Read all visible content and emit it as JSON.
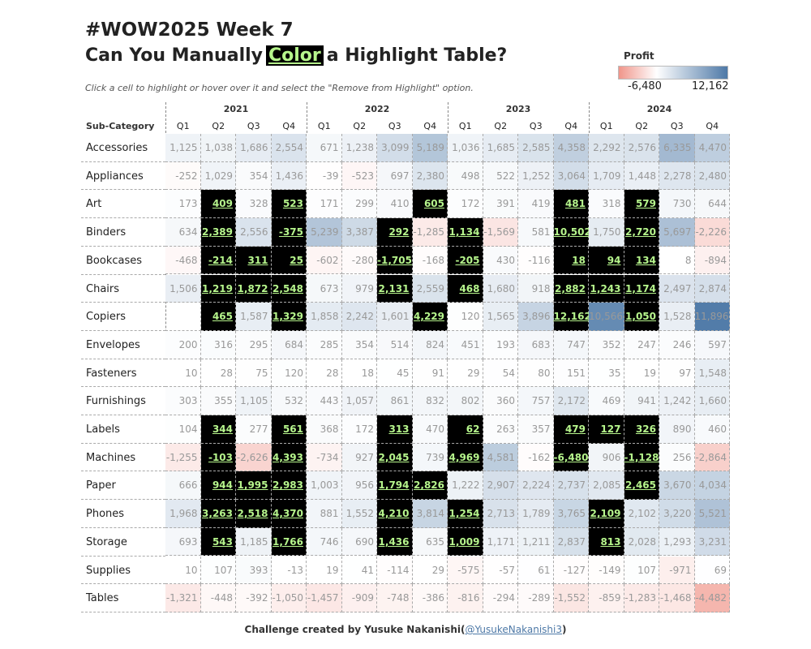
{
  "header": {
    "title_line1": "#WOW2025 Week 7",
    "title_line2": [
      "Can You Manually",
      "Color",
      "a Highlight Table?"
    ],
    "subtitle": "Click a cell to highlight or hover over it and select the \"Remove from Highlight\" option."
  },
  "legend": {
    "title": "Profit",
    "min": {
      "value": -6480,
      "label": "-6,480"
    },
    "max": {
      "value": 12162,
      "label": "12,162"
    },
    "negative_color": "#f0958a",
    "positive_color": "#4e79a7"
  },
  "table": {
    "row_header": "Sub-Category",
    "years": [
      "2021",
      "2022",
      "2023",
      "2024"
    ],
    "quarters": [
      "Q1",
      "Q2",
      "Q3",
      "Q4"
    ],
    "highlight_color": "#000000",
    "highlight_text_color": "#b6f58c",
    "rows": [
      {
        "label": "Accessories",
        "values": [
          "1,125",
          "1,038",
          "1,686",
          "2,554",
          "671",
          "1,238",
          "3,099",
          "5,189",
          "1,036",
          "1,685",
          "2,585",
          "4,358",
          "2,292",
          "2,576",
          "6,335",
          "4,470"
        ],
        "highlight": []
      },
      {
        "label": "Appliances",
        "values": [
          "-252",
          "1,029",
          "354",
          "1,436",
          "-39",
          "-523",
          "697",
          "2,380",
          "498",
          "522",
          "1,252",
          "3,064",
          "1,709",
          "1,448",
          "2,278",
          "2,480"
        ],
        "highlight": []
      },
      {
        "label": "Art",
        "values": [
          "173",
          "409",
          "328",
          "523",
          "171",
          "299",
          "410",
          "605",
          "172",
          "391",
          "419",
          "481",
          "318",
          "579",
          "730",
          "644"
        ],
        "highlight": [
          1,
          3,
          7,
          11,
          13
        ]
      },
      {
        "label": "Binders",
        "values": [
          "634",
          "2,389",
          "2,556",
          "-375",
          "5,239",
          "3,387",
          "292",
          "-1,285",
          "1,134",
          "-1,569",
          "581",
          "10,502",
          "1,750",
          "2,720",
          "5,697",
          "-2,226"
        ],
        "highlight": [
          1,
          3,
          6,
          8,
          11,
          13
        ]
      },
      {
        "label": "Bookcases",
        "values": [
          "-468",
          "-214",
          "311",
          "25",
          "-602",
          "-280",
          "-1,705",
          "-168",
          "-205",
          "430",
          "-116",
          "18",
          "94",
          "134",
          "8",
          "-894"
        ],
        "highlight": [
          1,
          2,
          3,
          6,
          8,
          11,
          12,
          13
        ]
      },
      {
        "label": "Chairs",
        "values": [
          "1,506",
          "1,219",
          "1,872",
          "2,548",
          "673",
          "979",
          "2,131",
          "2,559",
          "468",
          "1,680",
          "918",
          "2,882",
          "1,243",
          "1,174",
          "2,497",
          "2,874"
        ],
        "highlight": [
          1,
          2,
          3,
          6,
          8,
          11,
          12,
          13
        ]
      },
      {
        "label": "Copiers",
        "values": [
          null,
          "465",
          "1,587",
          "1,329",
          "1,858",
          "2,242",
          "1,601",
          "4,229",
          "120",
          "1,565",
          "3,896",
          "12,162",
          "10,566",
          "1,050",
          "1,528",
          "11,896"
        ],
        "highlight": [
          1,
          3,
          7,
          11,
          13
        ]
      },
      {
        "label": "Envelopes",
        "values": [
          "200",
          "316",
          "295",
          "684",
          "285",
          "354",
          "514",
          "824",
          "451",
          "193",
          "683",
          "747",
          "352",
          "247",
          "246",
          "597"
        ],
        "highlight": []
      },
      {
        "label": "Fasteners",
        "values": [
          "10",
          "28",
          "75",
          "120",
          "28",
          "18",
          "45",
          "91",
          "29",
          "54",
          "80",
          "151",
          "35",
          "19",
          "97",
          "1,548"
        ],
        "highlight": []
      },
      {
        "label": "Furnishings",
        "values": [
          "303",
          "355",
          "1,105",
          "532",
          "443",
          "1,057",
          "861",
          "832",
          "802",
          "360",
          "757",
          "2,172",
          "469",
          "941",
          "1,242",
          "1,660"
        ],
        "highlight": []
      },
      {
        "label": "Labels",
        "values": [
          "104",
          "344",
          "277",
          "561",
          "368",
          "172",
          "313",
          "470",
          "62",
          "263",
          "357",
          "479",
          "127",
          "326",
          "890",
          "460"
        ],
        "highlight": [
          1,
          3,
          6,
          8,
          11,
          12,
          13
        ]
      },
      {
        "label": "Machines",
        "values": [
          "-1,255",
          "-103",
          "-2,626",
          "4,393",
          "-734",
          "927",
          "2,045",
          "739",
          "4,969",
          "4,581",
          "-162",
          "-6,480",
          "906",
          "-1,128",
          "256",
          "-2,864"
        ],
        "highlight": [
          1,
          3,
          6,
          8,
          11,
          13
        ]
      },
      {
        "label": "Paper",
        "values": [
          "666",
          "944",
          "1,995",
          "2,983",
          "1,003",
          "956",
          "1,794",
          "2,826",
          "1,222",
          "2,907",
          "2,224",
          "2,737",
          "2,085",
          "2,465",
          "3,670",
          "4,034"
        ],
        "highlight": [
          1,
          2,
          3,
          6,
          7,
          13
        ]
      },
      {
        "label": "Phones",
        "values": [
          "1,968",
          "3,263",
          "2,518",
          "4,370",
          "881",
          "1,552",
          "4,210",
          "3,814",
          "1,254",
          "2,713",
          "1,789",
          "3,765",
          "2,109",
          "2,102",
          "3,220",
          "5,521"
        ],
        "highlight": [
          1,
          2,
          3,
          6,
          8,
          12
        ]
      },
      {
        "label": "Storage",
        "values": [
          "693",
          "543",
          "1,185",
          "1,766",
          "746",
          "690",
          "1,436",
          "635",
          "1,009",
          "1,171",
          "1,211",
          "2,837",
          "813",
          "2,028",
          "1,293",
          "3,231"
        ],
        "highlight": [
          1,
          3,
          6,
          8,
          12
        ]
      },
      {
        "label": "Supplies",
        "values": [
          "10",
          "107",
          "393",
          "-13",
          "19",
          "41",
          "-114",
          "29",
          "-575",
          "-57",
          "61",
          "-127",
          "-149",
          "107",
          "-971",
          "69"
        ],
        "highlight": []
      },
      {
        "label": "Tables",
        "values": [
          "-1,321",
          "-448",
          "-392",
          "-1,050",
          "-1,457",
          "-909",
          "-748",
          "-386",
          "-816",
          "-294",
          "-289",
          "-1,552",
          "-859",
          "-1,283",
          "-1,468",
          "-4,482"
        ],
        "highlight": []
      }
    ]
  },
  "footer": {
    "text": "Challenge created by Yusuke Nakanishi(",
    "link": "@YusukeNakanishi3",
    "close": ")"
  }
}
